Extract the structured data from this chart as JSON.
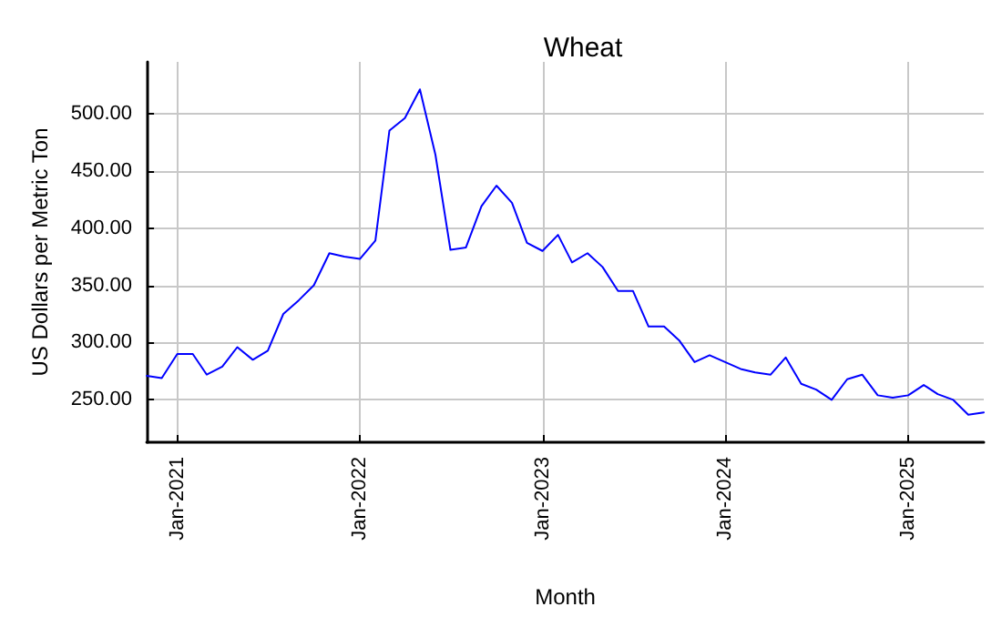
{
  "chart_data": {
    "type": "line",
    "title": "Wheat",
    "xlabel": "Month",
    "ylabel": "US Dollars per Metric Ton",
    "x": [
      "2020-11",
      "2020-12",
      "2021-01",
      "2021-02",
      "2021-03",
      "2021-04",
      "2021-05",
      "2021-06",
      "2021-07",
      "2021-08",
      "2021-09",
      "2021-10",
      "2021-11",
      "2021-12",
      "2022-01",
      "2022-02",
      "2022-03",
      "2022-04",
      "2022-05",
      "2022-06",
      "2022-07",
      "2022-08",
      "2022-09",
      "2022-10",
      "2022-11",
      "2022-12",
      "2023-01",
      "2023-02",
      "2023-03",
      "2023-04",
      "2023-05",
      "2023-06",
      "2023-07",
      "2023-08",
      "2023-09",
      "2023-10",
      "2023-11",
      "2023-12",
      "2024-01",
      "2024-02",
      "2024-03",
      "2024-04",
      "2024-05",
      "2024-06",
      "2024-07",
      "2024-08",
      "2024-09",
      "2024-10",
      "2024-11",
      "2024-12",
      "2025-01",
      "2025-02",
      "2025-03",
      "2025-04",
      "2025-05",
      "2025-06"
    ],
    "series": [
      {
        "color": "#0000ff",
        "values": [
          271,
          269,
          290,
          290,
          272,
          279,
          296,
          285,
          293,
          325,
          337,
          350,
          378,
          375,
          373,
          389,
          485,
          496,
          521,
          464,
          381,
          383,
          419,
          437,
          422,
          387,
          380,
          394,
          370,
          378,
          366,
          345,
          345,
          314,
          314,
          302,
          283,
          289,
          283,
          277,
          274,
          272,
          287,
          264,
          259,
          250,
          268,
          272,
          254,
          252,
          254,
          263,
          255,
          250,
          237,
          239
        ]
      }
    ],
    "xlim": [
      "2020-11",
      "2025-06"
    ],
    "xticks": [
      {
        "value": "2021-01",
        "label": "Jan-2021"
      },
      {
        "value": "2022-01",
        "label": "Jan-2022"
      },
      {
        "value": "2023-01",
        "label": "Jan-2023"
      },
      {
        "value": "2024-01",
        "label": "Jan-2024"
      },
      {
        "value": "2025-01",
        "label": "Jan-2025"
      }
    ],
    "ylim": [
      213,
      545
    ],
    "yticks": [
      {
        "value": 250,
        "label": "250.00"
      },
      {
        "value": 300,
        "label": "300.00"
      },
      {
        "value": 350,
        "label": "350.00"
      },
      {
        "value": 400,
        "label": "400.00"
      },
      {
        "value": 450,
        "label": "450.00"
      },
      {
        "value": 500,
        "label": "500.00"
      }
    ],
    "grid": true,
    "marker": "none",
    "line_style": "solid"
  }
}
